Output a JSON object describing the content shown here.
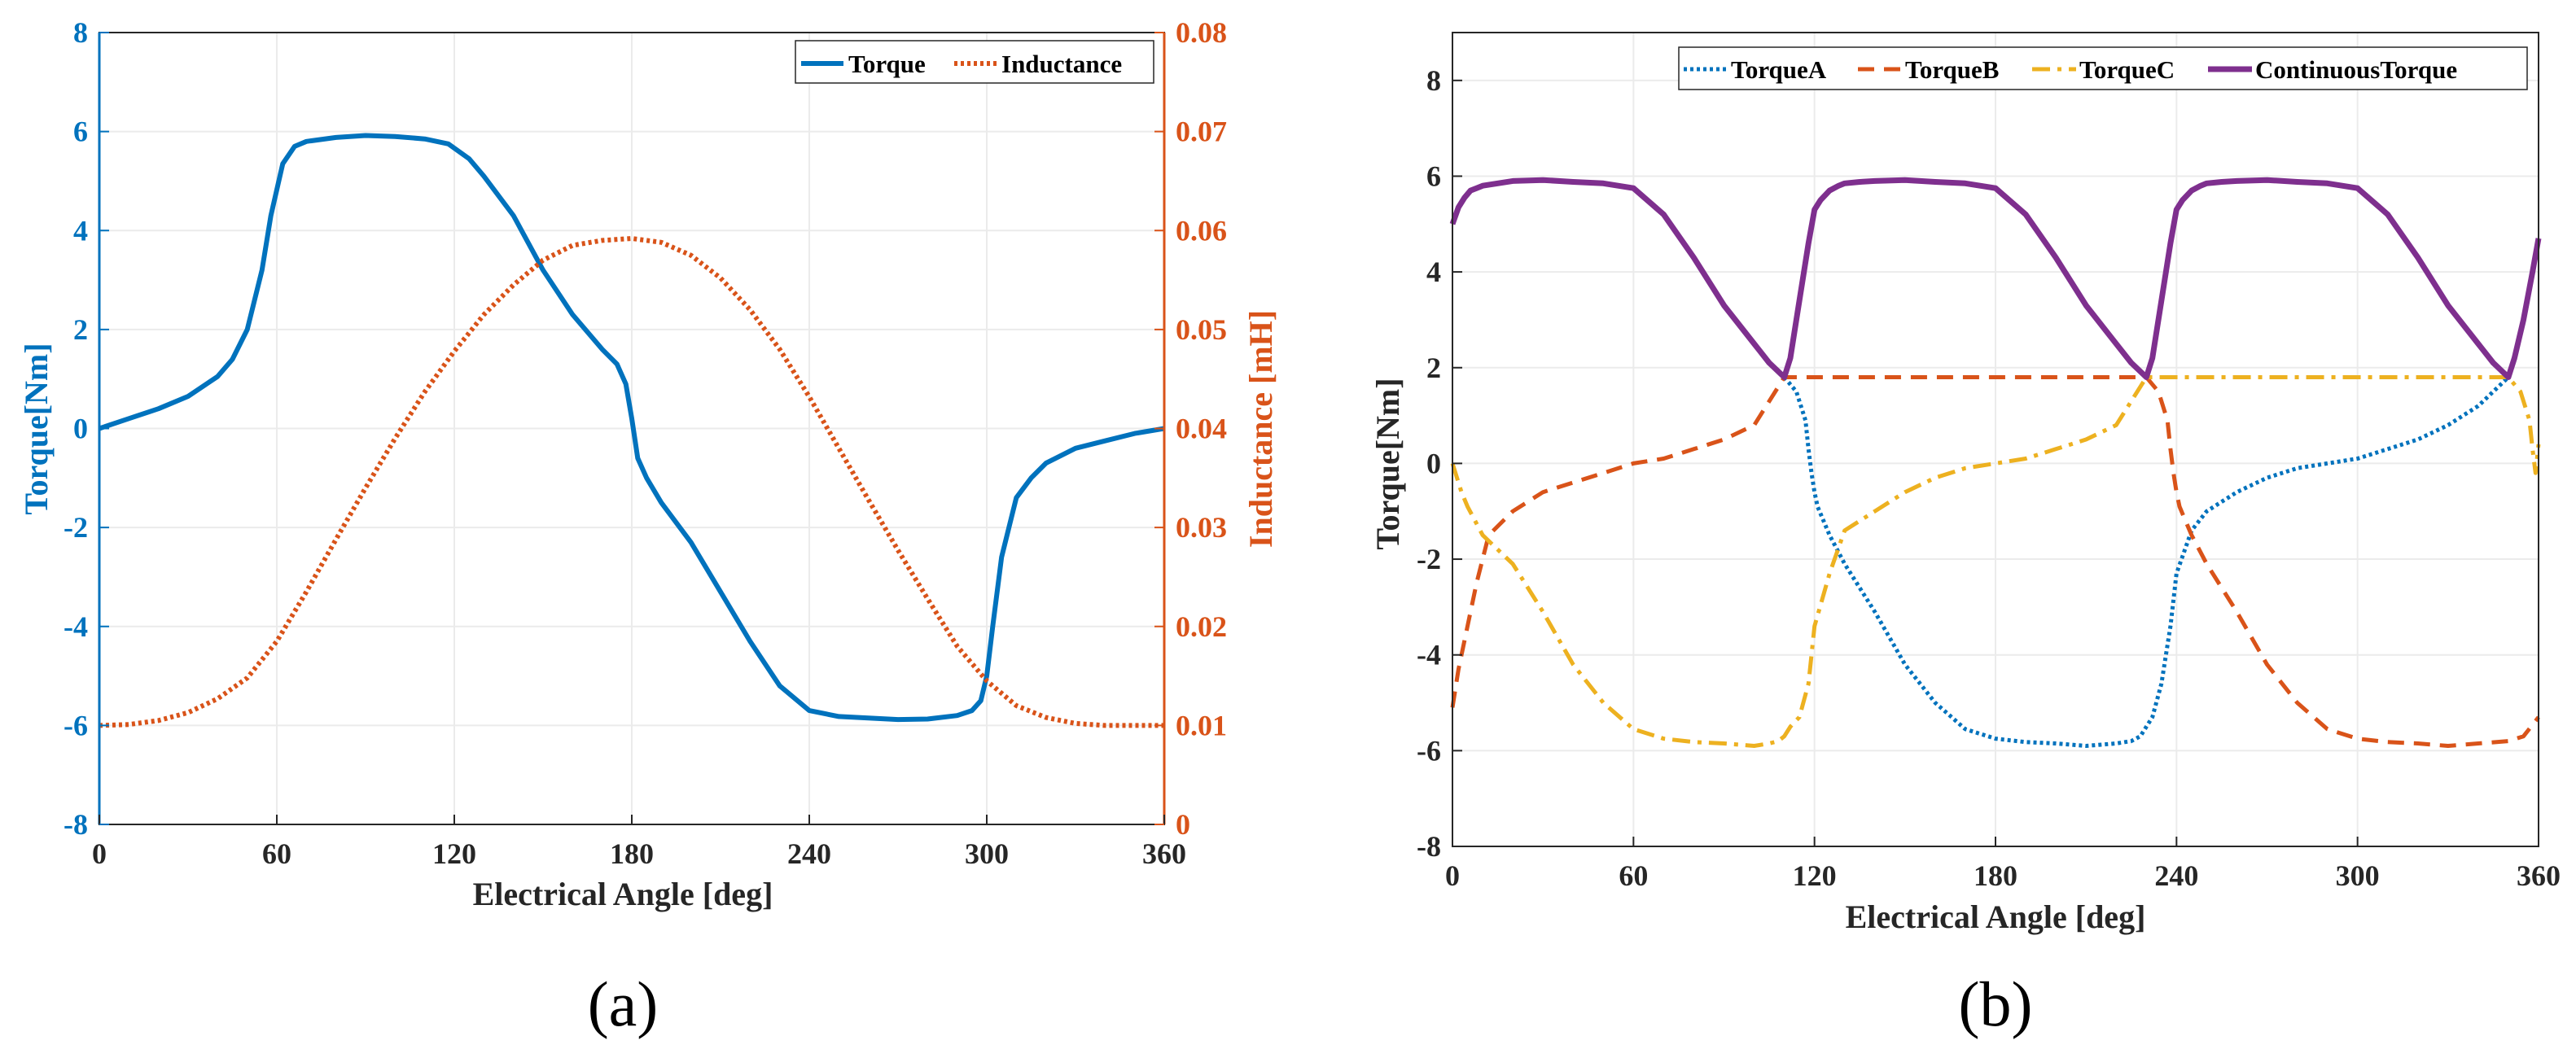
{
  "chart_data": [
    {
      "type": "line",
      "caption": "(a)",
      "xlabel": "Electrical Angle [deg]",
      "ylabel": "Torque[Nm]",
      "ylabel_right": "Inductance [mH]",
      "xlim": [
        0,
        360
      ],
      "ylim": [
        -8,
        8
      ],
      "ylim_right": [
        0,
        0.08
      ],
      "xticks": [
        "0",
        "60",
        "120",
        "180",
        "240",
        "300",
        "360"
      ],
      "yticks": [
        "-8",
        "-6",
        "-4",
        "-2",
        "0",
        "2",
        "4",
        "6",
        "8"
      ],
      "yticks_right": [
        "0",
        "0.01",
        "0.02",
        "0.03",
        "0.04",
        "0.05",
        "0.06",
        "0.07",
        "0.08"
      ],
      "grid": true,
      "legend_position": "top-right",
      "colors": {
        "left_axis": "#0072bd",
        "right_axis": "#d95319"
      },
      "series": [
        {
          "name": "Torque",
          "axis": "left",
          "style": "solid",
          "color": "#0072bd",
          "x": [
            0,
            10,
            20,
            30,
            40,
            45,
            50,
            55,
            58,
            62,
            66,
            70,
            80,
            90,
            100,
            110,
            118,
            125,
            130,
            140,
            150,
            160,
            170,
            175,
            178,
            180,
            182,
            185,
            190,
            200,
            210,
            220,
            230,
            240,
            250,
            260,
            270,
            280,
            290,
            295,
            298,
            300,
            302,
            305,
            310,
            315,
            320,
            330,
            340,
            350,
            360
          ],
          "values": [
            0,
            0.2,
            0.4,
            0.65,
            1.05,
            1.4,
            2.0,
            3.2,
            4.3,
            5.35,
            5.7,
            5.8,
            5.88,
            5.92,
            5.9,
            5.85,
            5.75,
            5.45,
            5.1,
            4.3,
            3.2,
            2.3,
            1.6,
            1.3,
            0.9,
            0.2,
            -0.6,
            -1.0,
            -1.5,
            -2.3,
            -3.3,
            -4.3,
            -5.2,
            -5.7,
            -5.82,
            -5.85,
            -5.88,
            -5.87,
            -5.8,
            -5.7,
            -5.5,
            -5.0,
            -4.0,
            -2.6,
            -1.4,
            -1.0,
            -0.7,
            -0.4,
            -0.25,
            -0.1,
            0
          ]
        },
        {
          "name": "Inductance",
          "axis": "right",
          "style": "dotted",
          "color": "#d95319",
          "x": [
            0,
            10,
            20,
            30,
            40,
            50,
            60,
            70,
            80,
            90,
            100,
            110,
            120,
            130,
            140,
            150,
            160,
            170,
            180,
            190,
            200,
            210,
            220,
            230,
            240,
            250,
            260,
            270,
            280,
            290,
            300,
            310,
            320,
            330,
            340,
            350,
            360
          ],
          "values": [
            0.01,
            0.0101,
            0.0105,
            0.0113,
            0.0127,
            0.0148,
            0.0185,
            0.0235,
            0.0288,
            0.034,
            0.039,
            0.0437,
            0.0478,
            0.0515,
            0.0545,
            0.057,
            0.0585,
            0.059,
            0.0592,
            0.0588,
            0.0575,
            0.0552,
            0.052,
            0.048,
            0.0432,
            0.038,
            0.0328,
            0.0277,
            0.0228,
            0.018,
            0.0145,
            0.012,
            0.0108,
            0.0102,
            0.01,
            0.01,
            0.01
          ]
        }
      ]
    },
    {
      "type": "line",
      "caption": "(b)",
      "xlabel": "Electrical Angle [deg]",
      "ylabel": "Torque[Nm]",
      "xlim": [
        0,
        360
      ],
      "ylim": [
        -8,
        9
      ],
      "xticks": [
        "0",
        "60",
        "120",
        "180",
        "240",
        "300",
        "360"
      ],
      "yticks": [
        "-8",
        "-6",
        "-4",
        "-2",
        "0",
        "2",
        "4",
        "6",
        "8"
      ],
      "grid": true,
      "legend_position": "top-right",
      "series": [
        {
          "name": "TorqueA",
          "style": "dotted",
          "color": "#0072bd",
          "x": [
            110,
            114,
            117,
            118,
            119,
            120,
            121,
            123,
            125,
            130,
            140,
            150,
            160,
            170,
            180,
            190,
            200,
            210,
            220,
            225,
            228,
            230,
            232,
            235,
            238,
            240,
            245,
            250,
            260,
            270,
            280,
            290,
            300,
            310,
            320,
            330,
            340,
            350
          ],
          "values": [
            1.8,
            1.5,
            0.9,
            0.3,
            -0.2,
            -0.6,
            -0.9,
            -1.2,
            -1.5,
            -2.1,
            -3.1,
            -4.2,
            -5.0,
            -5.55,
            -5.75,
            -5.82,
            -5.85,
            -5.9,
            -5.85,
            -5.8,
            -5.7,
            -5.5,
            -5.3,
            -4.6,
            -3.4,
            -2.3,
            -1.4,
            -1.0,
            -0.6,
            -0.3,
            -0.1,
            0,
            0.1,
            0.3,
            0.5,
            0.8,
            1.2,
            1.8
          ]
        },
        {
          "name": "TorqueB",
          "style": "dashed",
          "color": "#d95319",
          "x": [
            0,
            2,
            5,
            8,
            12,
            20,
            30,
            40,
            50,
            60,
            70,
            80,
            90,
            100,
            110,
            230,
            234,
            237,
            238,
            239,
            240,
            241,
            243,
            245,
            250,
            260,
            270,
            280,
            290,
            300,
            310,
            320,
            330,
            340,
            350,
            355,
            360
          ],
          "values": [
            -5.1,
            -4.3,
            -3.4,
            -2.5,
            -1.5,
            -1.0,
            -0.6,
            -0.4,
            -0.2,
            0,
            0.1,
            0.3,
            0.5,
            0.8,
            1.8,
            1.8,
            1.5,
            0.9,
            0.3,
            -0.2,
            -0.6,
            -0.9,
            -1.2,
            -1.5,
            -2.1,
            -3.1,
            -4.2,
            -5.0,
            -5.55,
            -5.75,
            -5.82,
            -5.85,
            -5.9,
            -5.85,
            -5.8,
            -5.7,
            -5.3
          ]
        },
        {
          "name": "TorqueC",
          "style": "dashdot",
          "color": "#edb120",
          "x": [
            0,
            3,
            5,
            10,
            20,
            30,
            40,
            50,
            60,
            70,
            80,
            90,
            100,
            105,
            108,
            110,
            112,
            115,
            118,
            120,
            125,
            130,
            140,
            150,
            160,
            170,
            180,
            190,
            200,
            210,
            220,
            230,
            350,
            354,
            357,
            358,
            359,
            360
          ],
          "values": [
            0,
            -0.6,
            -0.9,
            -1.5,
            -2.1,
            -3.1,
            -4.2,
            -5.0,
            -5.55,
            -5.75,
            -5.82,
            -5.85,
            -5.9,
            -5.85,
            -5.8,
            -5.7,
            -5.5,
            -5.3,
            -4.6,
            -3.4,
            -2.3,
            -1.4,
            -1.0,
            -0.6,
            -0.3,
            -0.1,
            0,
            0.1,
            0.3,
            0.5,
            0.8,
            1.8,
            1.8,
            1.5,
            0.9,
            0.3,
            -0.2,
            0.4
          ]
        },
        {
          "name": "ContinuousTorque",
          "style": "solid",
          "color": "#7e2f8e",
          "x": [
            0,
            2,
            4,
            6,
            8,
            10,
            15,
            20,
            30,
            40,
            50,
            60,
            70,
            80,
            90,
            100,
            105,
            110,
            112,
            115,
            118,
            120,
            122,
            125,
            128,
            130,
            135,
            140,
            150,
            160,
            170,
            180,
            190,
            200,
            210,
            220,
            225,
            230,
            232,
            235,
            238,
            240,
            242,
            245,
            248,
            250,
            255,
            260,
            270,
            280,
            290,
            300,
            310,
            320,
            330,
            340,
            345,
            350,
            352,
            355,
            358,
            360
          ],
          "values": [
            5.0,
            5.35,
            5.55,
            5.7,
            5.75,
            5.8,
            5.85,
            5.9,
            5.92,
            5.88,
            5.85,
            5.75,
            5.2,
            4.3,
            3.3,
            2.5,
            2.1,
            1.8,
            2.2,
            3.4,
            4.6,
            5.3,
            5.5,
            5.7,
            5.8,
            5.85,
            5.88,
            5.9,
            5.92,
            5.88,
            5.85,
            5.75,
            5.2,
            4.3,
            3.3,
            2.5,
            2.1,
            1.8,
            2.2,
            3.4,
            4.6,
            5.3,
            5.5,
            5.7,
            5.8,
            5.85,
            5.88,
            5.9,
            5.92,
            5.88,
            5.85,
            5.75,
            5.2,
            4.3,
            3.3,
            2.5,
            2.1,
            1.8,
            2.2,
            3.0,
            4.0,
            4.7
          ]
        }
      ]
    }
  ]
}
